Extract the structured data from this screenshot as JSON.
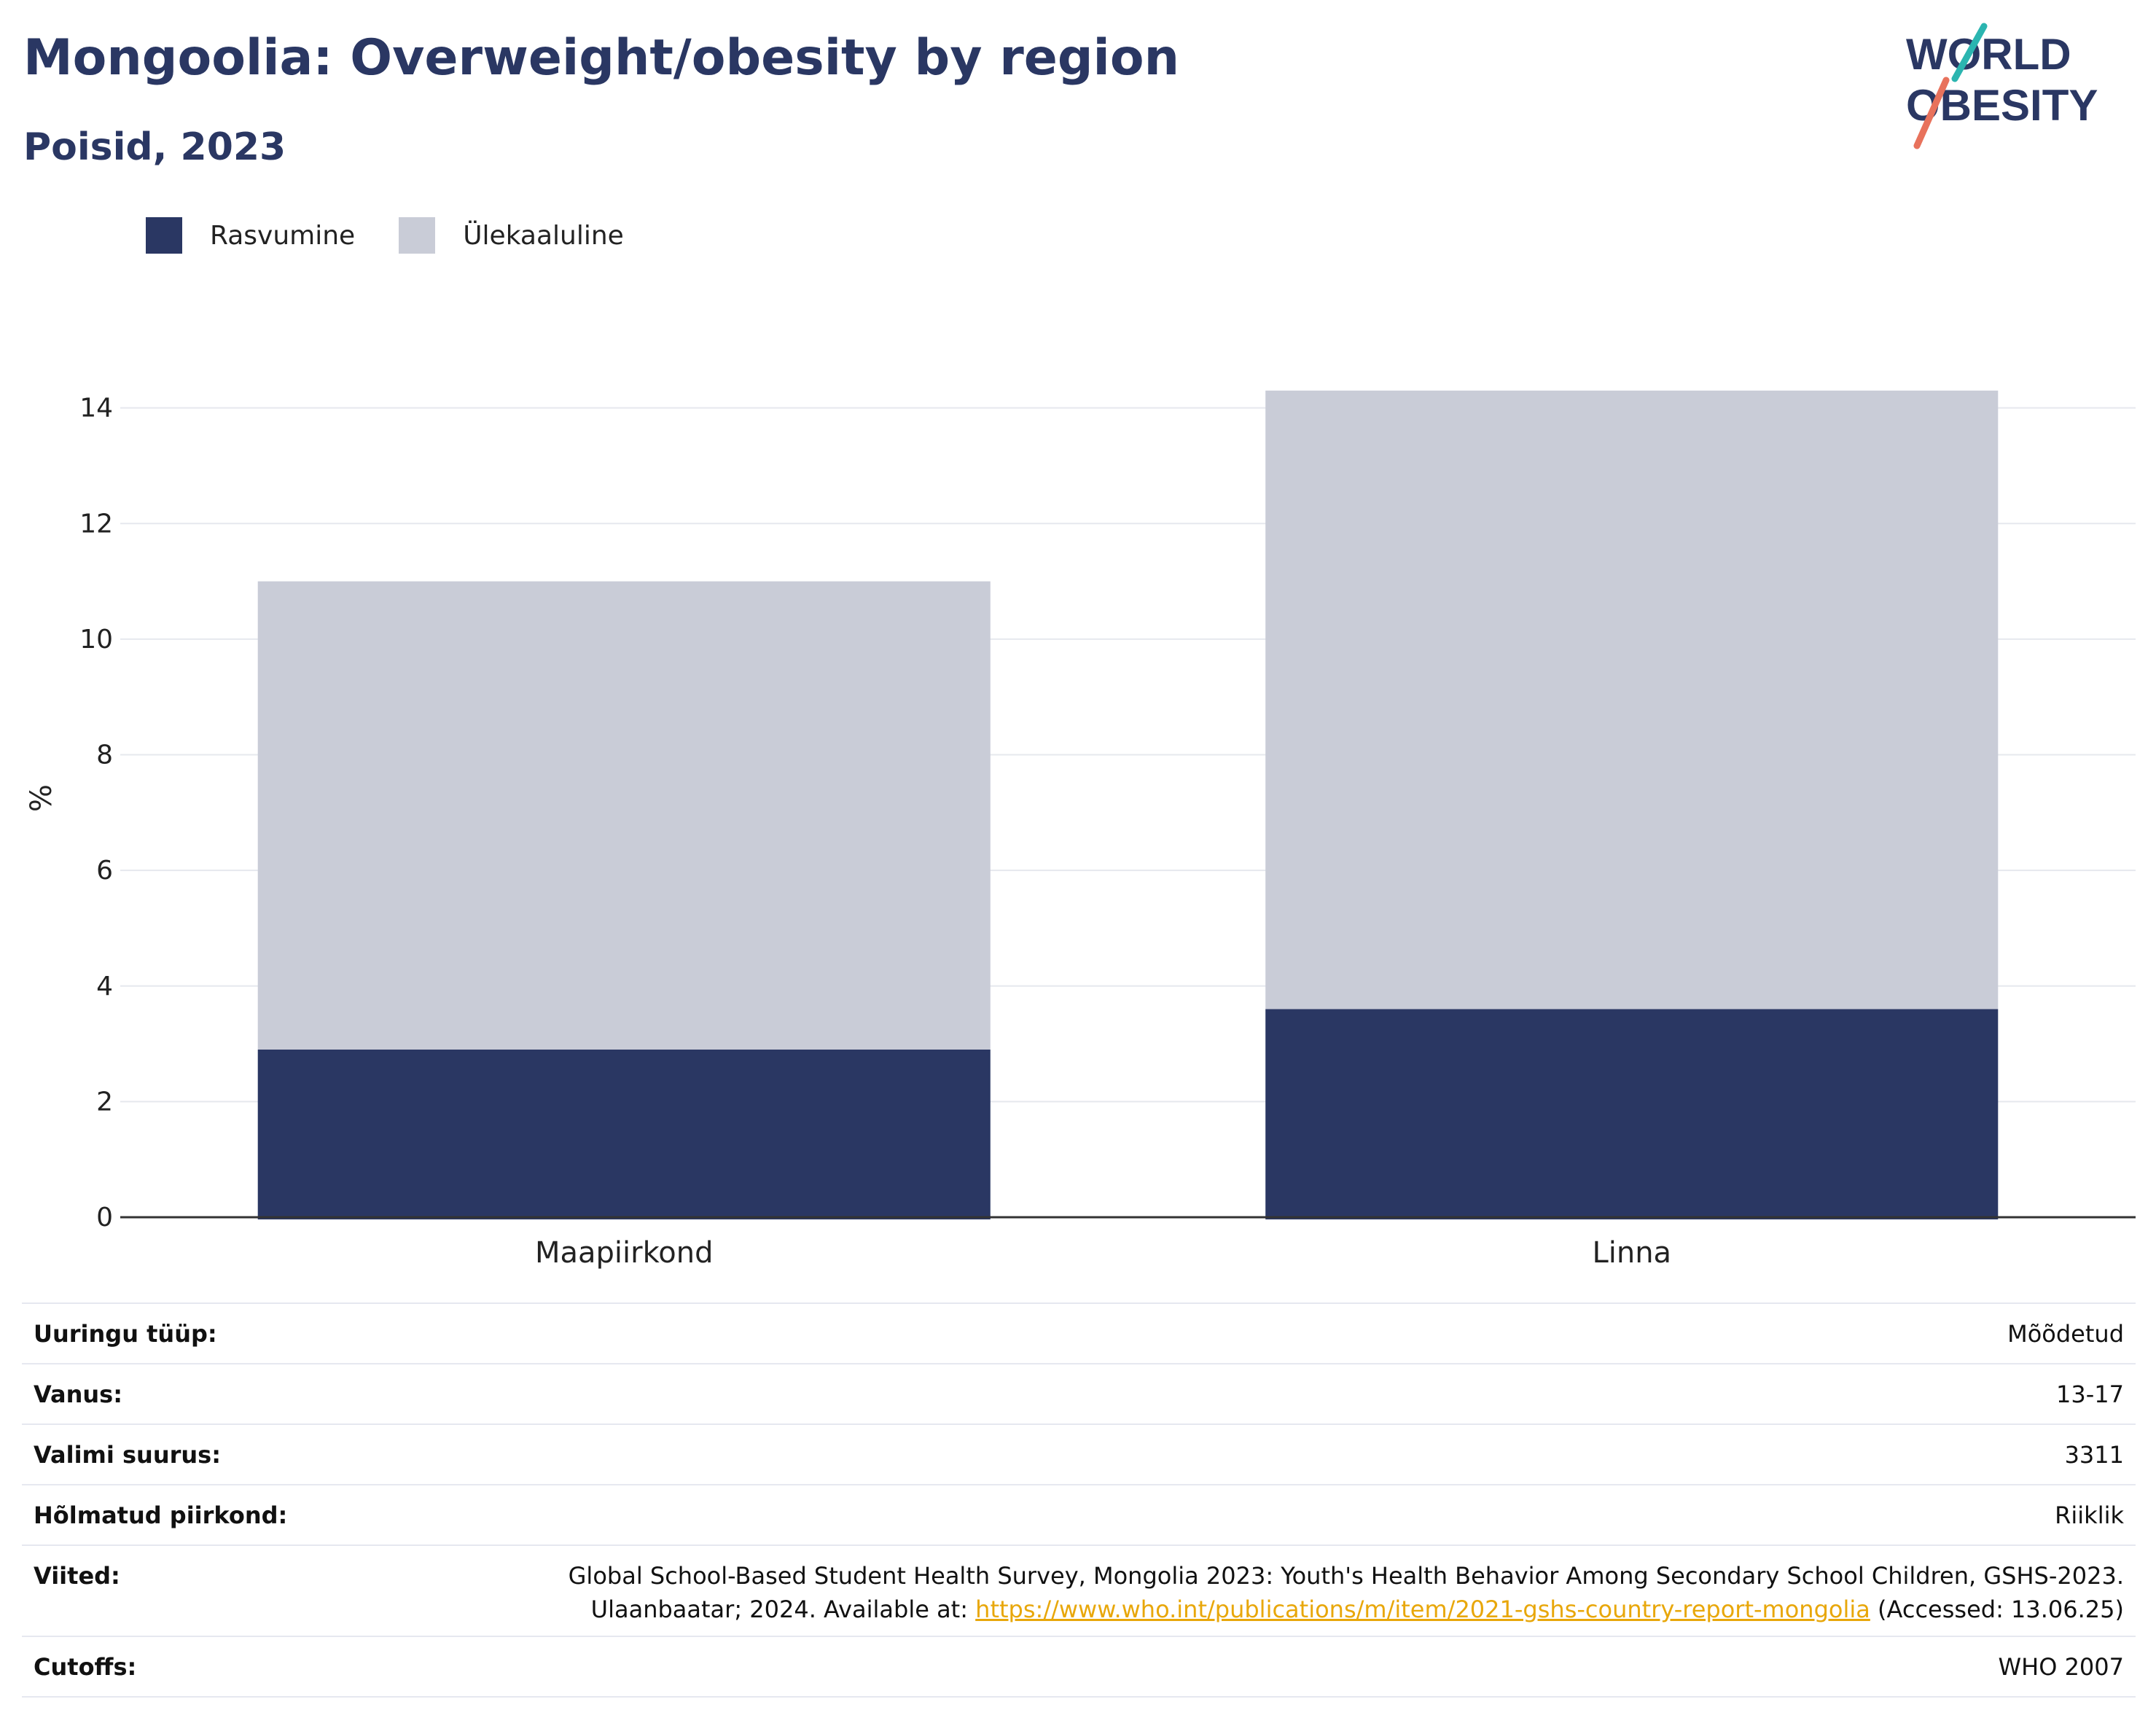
{
  "title": "Mongoolia: Overweight/obesity by region",
  "subtitle": "Poisid, 2023",
  "logo": {
    "line1": "WORLD",
    "line2": "OBESITY"
  },
  "legend": [
    {
      "label": "Rasvumine",
      "color": "#2a3763"
    },
    {
      "label": "Ülekaaluline",
      "color": "#c9ccd7"
    }
  ],
  "chart_data": {
    "type": "bar",
    "stacked": true,
    "categories": [
      "Maapiirkond",
      "Linna"
    ],
    "series": [
      {
        "name": "Rasvumine",
        "values": [
          2.9,
          3.6
        ],
        "color": "#2a3763"
      },
      {
        "name": "Ülekaaluline",
        "values": [
          8.1,
          10.7
        ],
        "color": "#c9ccd7"
      }
    ],
    "ylabel": "%",
    "ylim": [
      0,
      14.5
    ],
    "yticks": [
      0,
      2,
      4,
      6,
      8,
      10,
      12,
      14
    ],
    "grid": true,
    "legend_position": "top-left"
  },
  "info": {
    "survey_type": {
      "label": "Uuringu tüüp:",
      "value": "Mõõdetud"
    },
    "age": {
      "label": "Vanus:",
      "value": "13-17"
    },
    "sample_size": {
      "label": "Valimi suurus:",
      "value": "3311"
    },
    "area": {
      "label": "Hõlmatud piirkond:",
      "value": "Riiklik"
    },
    "references": {
      "label": "Viited:",
      "line1": "Global School-Based Student Health Survey, Mongolia 2023: Youth's Health Behavior Among Secondary School Children, GSHS-2023.",
      "line2_pre": "Ulaanbaatar; 2024. Available at: ",
      "link": "https://www.who.int/publications/m/item/2021-gshs-country-report-mongolia",
      "line2_post": " (Accessed: 13.06.25)"
    },
    "cutoffs": {
      "label": "Cutoffs:",
      "value": "WHO 2007"
    }
  }
}
